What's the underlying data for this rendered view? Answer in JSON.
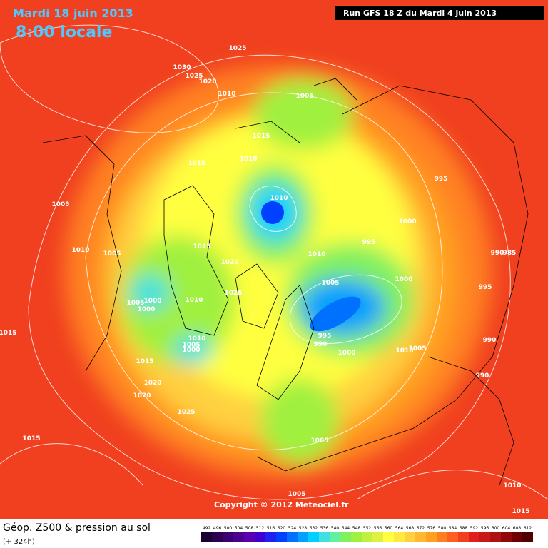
{
  "header": {
    "date": "Mardi 18 juin 2013",
    "time": "8:00 locale",
    "run": "Run GFS 18 Z du Mardi 4 juin 2013"
  },
  "copyright": "Copyright © 2012 Meteociel.fr",
  "footer": {
    "title": "Géop. Z500 & pression au sol",
    "lead": "(+ 324h)"
  },
  "isobar_labels": [
    "1025",
    "1030",
    "1025",
    "1020",
    "1010",
    "1005",
    "1015",
    "1010",
    "1015",
    "995",
    "1010",
    "1005",
    "1000",
    "1025",
    "995",
    "1010",
    "1005",
    "1010",
    "990",
    "985",
    "1020",
    "1000",
    "1005",
    "995",
    "1025",
    "1005",
    "1000",
    "1010",
    "1000",
    "995",
    "990",
    "1010",
    "1005",
    "1000",
    "1000",
    "990",
    "1010",
    "1005",
    "1015",
    "1015",
    "990",
    "1020",
    "1020",
    "1025",
    "1015",
    "1005",
    "1005",
    "1010",
    "1015"
  ],
  "scale": {
    "labels": [
      "492",
      "496",
      "500",
      "504",
      "508",
      "512",
      "516",
      "520",
      "524",
      "528",
      "532",
      "536",
      "540",
      "544",
      "548",
      "552",
      "556",
      "560",
      "564",
      "568",
      "572",
      "576",
      "580",
      "584",
      "588",
      "592",
      "596",
      "600",
      "604",
      "608",
      "612"
    ],
    "colors": [
      "#1a0033",
      "#2d0050",
      "#3c0070",
      "#4b0090",
      "#5a00b0",
      "#4000d0",
      "#2020f0",
      "#0040ff",
      "#0070ff",
      "#00a0ff",
      "#00d0ff",
      "#40e0e0",
      "#60f0a0",
      "#80f060",
      "#a0f040",
      "#c0f040",
      "#e0f040",
      "#ffff40",
      "#ffe840",
      "#ffd040",
      "#ffb830",
      "#ffa020",
      "#ff8020",
      "#ff6020",
      "#f04020",
      "#e02020",
      "#c81818",
      "#b01010",
      "#900808",
      "#700000",
      "#500000"
    ]
  }
}
